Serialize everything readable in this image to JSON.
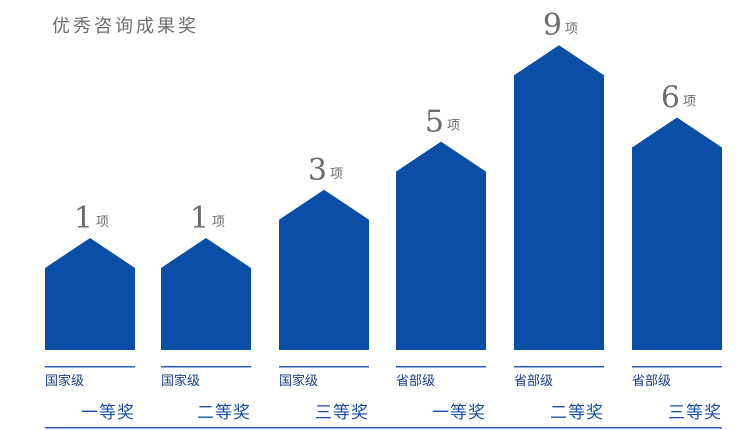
{
  "title": "优秀咨询成果奖",
  "chart_data": {
    "type": "bar",
    "title": "优秀咨询成果奖",
    "unit": "项",
    "categories": [
      {
        "level": "国家级",
        "award": "一等奖"
      },
      {
        "level": "国家级",
        "award": "二等奖"
      },
      {
        "level": "国家级",
        "award": "三等奖"
      },
      {
        "level": "省部级",
        "award": "一等奖"
      },
      {
        "level": "省部级",
        "award": "二等奖"
      },
      {
        "level": "省部级",
        "award": "三等奖"
      }
    ],
    "values": [
      1,
      1,
      3,
      5,
      9,
      6
    ],
    "colors": {
      "bar": "#0a4ea8",
      "rule": "#2a5fb0",
      "number": "#6b6b6b"
    }
  }
}
